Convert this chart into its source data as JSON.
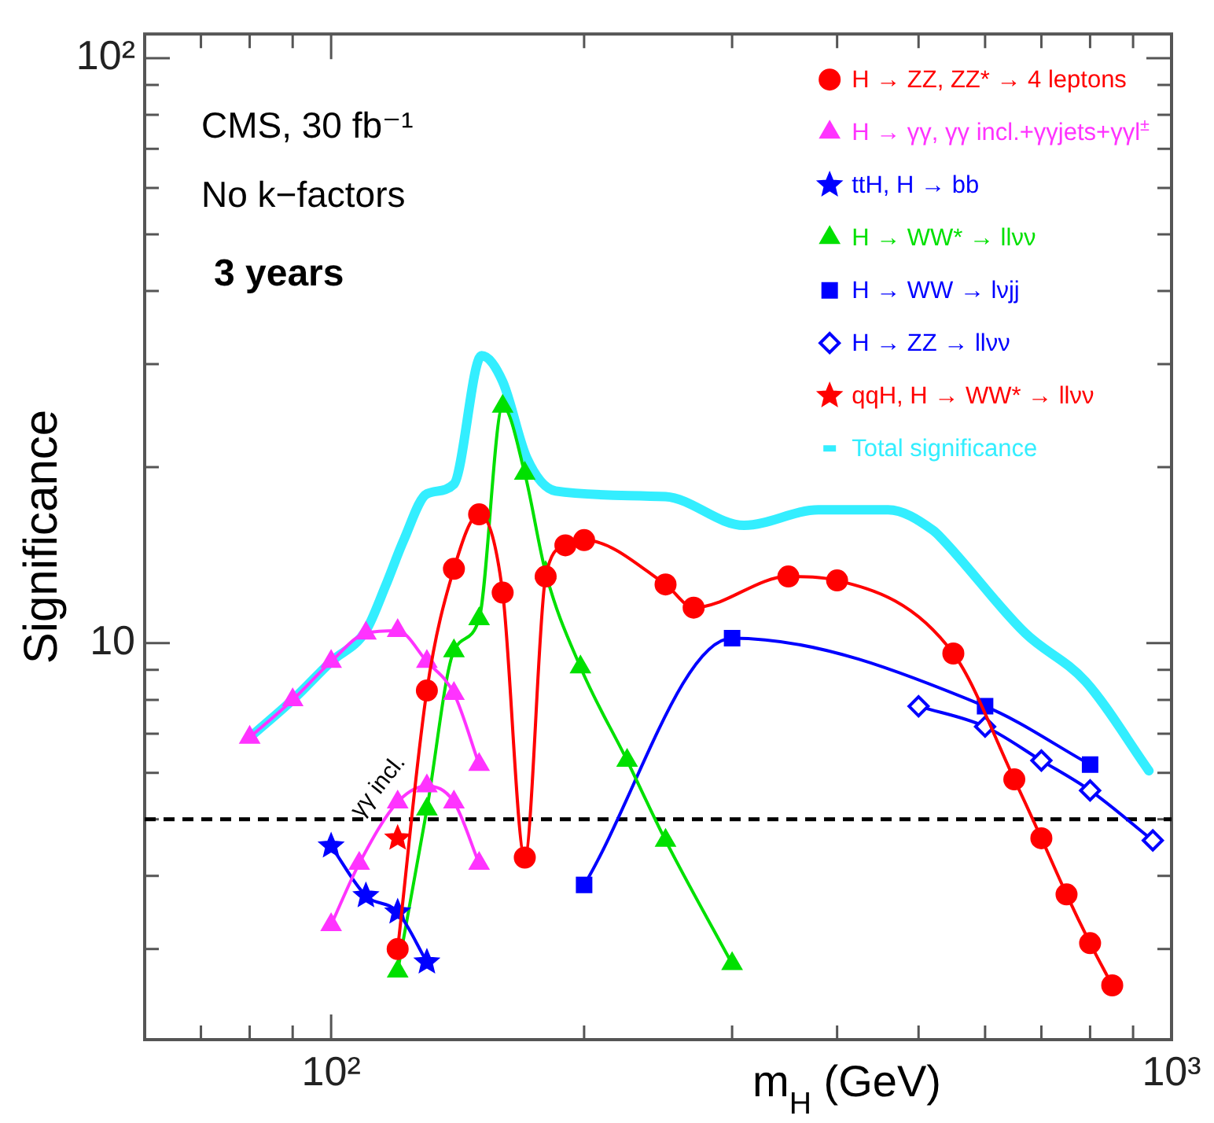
{
  "chart_data": {
    "type": "line",
    "xlabel": "m$_{H}$ (GeV)",
    "ylabel": "Significance",
    "log": "xy",
    "legend": "top right",
    "grid": false,
    "xlim": [
      60,
      1000
    ],
    "ylim": [
      2.1,
      110
    ],
    "xticks": [
      {
        "value": 70,
        "label": null
      },
      {
        "value": 80,
        "label": null
      },
      {
        "value": 90,
        "label": null
      },
      {
        "value": 100,
        "label": "10²"
      },
      {
        "value": 200,
        "label": null
      },
      {
        "value": 300,
        "label": null
      },
      {
        "value": 400,
        "label": null
      },
      {
        "value": 500,
        "label": null
      },
      {
        "value": 600,
        "label": null
      },
      {
        "value": 700,
        "label": null
      },
      {
        "value": 800,
        "label": null
      },
      {
        "value": 900,
        "label": null
      },
      {
        "value": 1000,
        "label": "10³"
      }
    ],
    "yticks": [
      {
        "value": 3,
        "label": null
      },
      {
        "value": 4,
        "label": null
      },
      {
        "value": 5,
        "label": null
      },
      {
        "value": 6,
        "label": null
      },
      {
        "value": 7,
        "label": null
      },
      {
        "value": 8,
        "label": null
      },
      {
        "value": 9,
        "label": null
      },
      10,
      {
        "value": 20,
        "label": null
      },
      {
        "value": 30,
        "label": null
      },
      {
        "value": 40,
        "label": null
      },
      {
        "value": 50,
        "label": null
      },
      {
        "value": 60,
        "label": null
      },
      {
        "value": 70,
        "label": null
      },
      {
        "value": 80,
        "label": null
      },
      {
        "value": 90,
        "label": null
      },
      {
        "value": 100,
        "label": "10²"
      }
    ],
    "ref_lines": [
      {
        "axis": "y",
        "value": 5,
        "color": "#000000",
        "line_style": "dashed"
      }
    ],
    "annotations": [
      "CMS, 30 fb⁻¹",
      "No k−factors",
      "3 years",
      "γγ incl."
    ],
    "series": [
      {
        "name": "H → ZZ, ZZ* → 4 leptons",
        "color": "#ff0000",
        "marker": "circle",
        "x": [
          120,
          130,
          140,
          150,
          160,
          170,
          180,
          190,
          200,
          250,
          270,
          350,
          400,
          550,
          650,
          700,
          750,
          800,
          850
        ],
        "values": [
          3.0,
          8.3,
          13.4,
          16.6,
          12.2,
          4.3,
          13.0,
          14.7,
          15,
          12.6,
          11.5,
          13.0,
          12.8,
          9.6,
          5.85,
          4.64,
          3.72,
          3.07,
          2.6
        ]
      },
      {
        "name": "H → γγ, γγ incl.+γγjets+γγl$^{±}$",
        "color": "#ff33ff",
        "marker": "triangle",
        "x": [
          80,
          90,
          100,
          110,
          120,
          130,
          140,
          150
        ],
        "values": [
          6.9,
          8.0,
          9.3,
          10.4,
          10.5,
          9.3,
          8.2,
          6.2
        ]
      },
      {
        "color": "#ff33ff",
        "marker": "triangle",
        "x": [
          100,
          108,
          120,
          130,
          140,
          150
        ],
        "values": [
          3.3,
          4.2,
          5.35,
          5.7,
          5.35,
          4.2
        ]
      },
      {
        "name": "ttH, H → bb",
        "color": "#0000ff",
        "marker": "star",
        "x": [
          100,
          110,
          120,
          130
        ],
        "values": [
          4.5,
          3.7,
          3.47,
          2.85
        ]
      },
      {
        "name": "H → WW* → llνν",
        "color": "#00e000",
        "marker": "triangle",
        "x": [
          120,
          130,
          140,
          150,
          160,
          170,
          180,
          198,
          225,
          250,
          300
        ],
        "values": [
          2.75,
          5.2,
          9.7,
          11.0,
          25.4,
          19.5,
          13.2,
          9.1,
          6.3,
          4.6,
          2.83
        ]
      },
      {
        "name": "H → WW → lνjj",
        "color": "#0000ff",
        "marker": "square",
        "x": [
          200,
          300,
          600,
          800
        ],
        "values": [
          3.86,
          10.2,
          7.8,
          6.2
        ]
      },
      {
        "name": "H → ZZ → llνν",
        "color": "#0000ff",
        "marker": "diamond",
        "x": [
          500,
          600,
          700,
          800,
          950
        ],
        "values": [
          7.8,
          7.2,
          6.3,
          5.6,
          4.6
        ]
      },
      {
        "name": "qqH, H → WW* → llνν",
        "color": "#ff0000",
        "marker": "star",
        "x": [
          120
        ],
        "values": [
          4.64
        ]
      },
      {
        "name": "Total significance",
        "color": "#33eeff",
        "marker": "none",
        "x": [
          80,
          90,
          100,
          110,
          116,
          122,
          130,
          140,
          151,
          160,
          171,
          185,
          250,
          310,
          380,
          460,
          520,
          535,
          670,
          790,
          940
        ],
        "values": [
          6.9,
          8.0,
          9.3,
          10.5,
          12.5,
          15,
          18,
          18.7,
          31,
          28,
          20.7,
          18.2,
          17.8,
          15.9,
          16.9,
          16.9,
          15.6,
          15,
          10.4,
          8.6,
          6.05
        ]
      }
    ]
  }
}
